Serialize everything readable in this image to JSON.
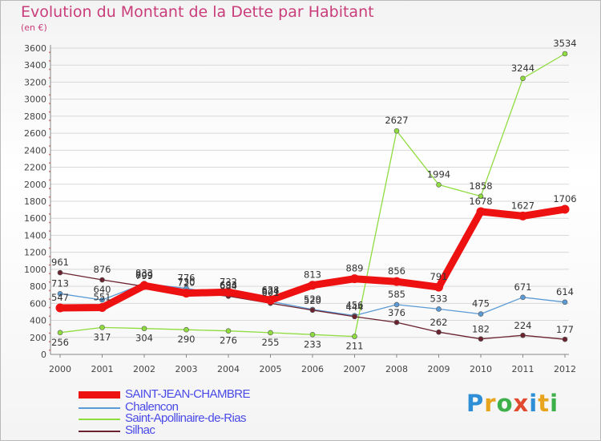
{
  "chart_data": {
    "type": "line",
    "title": "Evolution du Montant de la Dette par Habitant",
    "subtitle": "(en €)",
    "xlabel": "",
    "ylabel": "",
    "x": [
      "2000",
      "2001",
      "2002",
      "2003",
      "2004",
      "2005",
      "2006",
      "2007",
      "2008",
      "2009",
      "2010",
      "2011",
      "2012"
    ],
    "ylim": [
      0,
      3600
    ],
    "yticks": [
      0,
      200,
      400,
      600,
      800,
      1000,
      1200,
      1400,
      1600,
      1800,
      2000,
      2200,
      2400,
      2600,
      2800,
      3000,
      3200,
      3400,
      3600
    ],
    "grid": true,
    "series": [
      {
        "name": "SAINT-JEAN-CHAMBRE",
        "color": "#ee1111",
        "width": 9,
        "values": [
          547,
          551,
          809,
          720,
          732,
          638,
          813,
          889,
          856,
          791,
          1678,
          1627,
          1706
        ]
      },
      {
        "name": "Chalencon",
        "color": "#5b9bd5",
        "width": 1.3,
        "values": [
          713,
          640,
          833,
          776,
          693,
          624,
          529,
          456,
          585,
          533,
          475,
          671,
          614
        ]
      },
      {
        "name": "Saint-Apollinaire-de-Rias",
        "color": "#8fdc3f",
        "width": 1.3,
        "values": [
          256,
          317,
          304,
          290,
          276,
          255,
          233,
          211,
          2627,
          1994,
          1858,
          3244,
          3534
        ]
      },
      {
        "name": "Silhac",
        "color": "#6b2330",
        "width": 1.3,
        "values": [
          961,
          876,
          799,
          730,
          684,
          601,
          520,
          444,
          376,
          262,
          182,
          224,
          177
        ]
      }
    ]
  },
  "legend": {
    "items": [
      {
        "label": "SAINT-JEAN-CHAMBRE",
        "color": "#ee1111"
      },
      {
        "label": "Chalencon",
        "color": "#5b9bd5"
      },
      {
        "label": "Saint-Apollinaire-de-Rias",
        "color": "#8fdc3f"
      },
      {
        "label": "Silhac",
        "color": "#6b2330"
      }
    ]
  },
  "logo": {
    "letters": [
      "P",
      "r",
      "o",
      "x",
      "i",
      "t",
      "i"
    ],
    "colors": [
      "#2f8fd6",
      "#e8a41c",
      "#3db04a",
      "#e04a2f",
      "#2f8fd6",
      "#e8a41c",
      "#3db04a"
    ]
  }
}
